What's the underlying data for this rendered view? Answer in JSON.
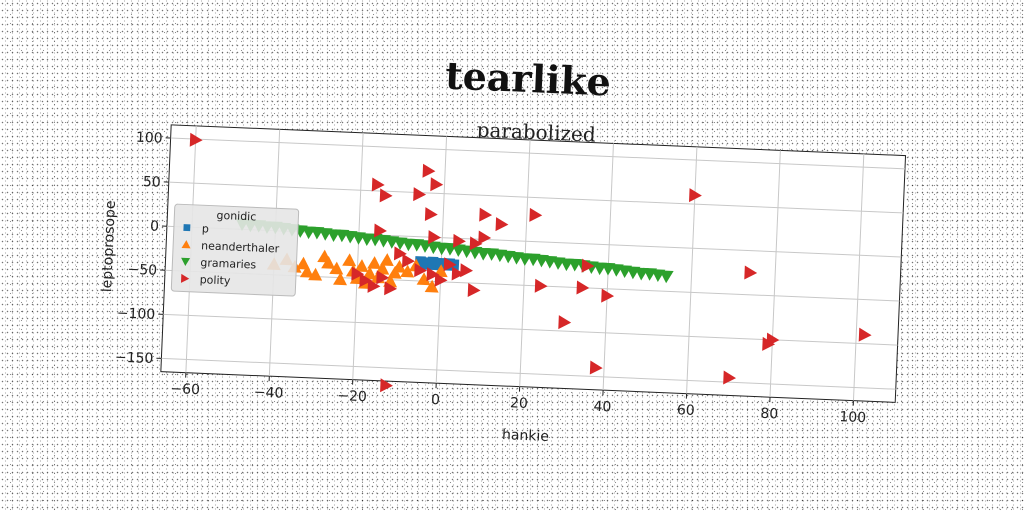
{
  "chart_data": {
    "type": "scatter",
    "title": "tearlike",
    "subtitle": "parabolized",
    "xlabel": "hankie",
    "ylabel": "leptoprosope",
    "xlim": [
      -66,
      110
    ],
    "ylim": [
      -165,
      115
    ],
    "xticks": [
      -60,
      -40,
      -20,
      0,
      20,
      40,
      60,
      80,
      100
    ],
    "yticks": [
      100,
      50,
      0,
      -50,
      -100,
      -150
    ],
    "grid": true,
    "legend": {
      "title": "gonidic",
      "position": "center-left"
    },
    "series": [
      {
        "name": "p",
        "marker": "square",
        "color": "#1f77b4",
        "points": [
          [
            -5,
            -28
          ],
          [
            -4,
            -29
          ],
          [
            -3,
            -29
          ],
          [
            -2,
            -28
          ],
          [
            -1,
            -30
          ],
          [
            0,
            -29
          ],
          [
            1,
            -30
          ],
          [
            2,
            -29
          ],
          [
            3,
            -30
          ],
          [
            -4,
            -31
          ],
          [
            -2,
            -31
          ],
          [
            0,
            -31
          ],
          [
            2,
            -31
          ]
        ]
      },
      {
        "name": "neanderthaler",
        "marker": "triangle-up",
        "color": "#ff7f0e",
        "points": [
          [
            -40,
            -38
          ],
          [
            -37,
            -32
          ],
          [
            -35,
            -40
          ],
          [
            -33,
            -36
          ],
          [
            -32,
            -45
          ],
          [
            -30,
            -48
          ],
          [
            -28,
            -27
          ],
          [
            -27,
            -34
          ],
          [
            -25,
            -40
          ],
          [
            -24,
            -52
          ],
          [
            -22,
            -30
          ],
          [
            -21,
            -42
          ],
          [
            -20,
            -50
          ],
          [
            -19,
            -36
          ],
          [
            -18,
            -55
          ],
          [
            -17,
            -44
          ],
          [
            -16,
            -32
          ],
          [
            -15,
            -48
          ],
          [
            -14,
            -38
          ],
          [
            -13,
            -28
          ],
          [
            -12,
            -52
          ],
          [
            -11,
            -42
          ],
          [
            -10,
            -35
          ],
          [
            -8,
            -40
          ],
          [
            -6,
            -33
          ],
          [
            -4,
            -48
          ],
          [
            -2,
            -56
          ],
          [
            0,
            -38
          ]
        ]
      },
      {
        "name": "gramaries",
        "marker": "triangle-down",
        "color": "#2ca02c",
        "points": [
          [
            -48,
            6
          ],
          [
            -46,
            5
          ],
          [
            -44,
            5
          ],
          [
            -42,
            4
          ],
          [
            -40,
            4
          ],
          [
            -38,
            3
          ],
          [
            -36,
            2
          ],
          [
            -34,
            1
          ],
          [
            -32,
            0
          ],
          [
            -30,
            0
          ],
          [
            -28,
            -1
          ],
          [
            -26,
            -2
          ],
          [
            -24,
            -2
          ],
          [
            -22,
            -3
          ],
          [
            -20,
            -4
          ],
          [
            -18,
            -5
          ],
          [
            -16,
            -5
          ],
          [
            -14,
            -6
          ],
          [
            -12,
            -7
          ],
          [
            -10,
            -8
          ],
          [
            -8,
            -9
          ],
          [
            -6,
            -9
          ],
          [
            -4,
            -10
          ],
          [
            -2,
            -11
          ],
          [
            0,
            -12
          ],
          [
            2,
            -12
          ],
          [
            4,
            -13
          ],
          [
            6,
            -14
          ],
          [
            8,
            -15
          ],
          [
            10,
            -16
          ],
          [
            12,
            -16
          ],
          [
            14,
            -17
          ],
          [
            16,
            -18
          ],
          [
            18,
            -19
          ],
          [
            20,
            -20
          ],
          [
            22,
            -20
          ],
          [
            24,
            -21
          ],
          [
            26,
            -22
          ],
          [
            28,
            -23
          ],
          [
            30,
            -24
          ],
          [
            32,
            -24
          ],
          [
            34,
            -25
          ],
          [
            36,
            -26
          ],
          [
            38,
            -27
          ],
          [
            40,
            -27
          ],
          [
            42,
            -28
          ],
          [
            44,
            -29
          ],
          [
            46,
            -30
          ],
          [
            48,
            -31
          ],
          [
            50,
            -31
          ],
          [
            52,
            -32
          ],
          [
            54,
            -33
          ]
        ]
      },
      {
        "name": "polity",
        "marker": "triangle-right",
        "color": "#d62728",
        "points": [
          [
            -60,
            99
          ],
          [
            -16,
            57
          ],
          [
            -14,
            45
          ],
          [
            -4,
            75
          ],
          [
            -2,
            60
          ],
          [
            -6,
            48
          ],
          [
            -3,
            26
          ],
          [
            -15,
            5
          ],
          [
            -2,
            0
          ],
          [
            4,
            -3
          ],
          [
            10,
            28
          ],
          [
            14,
            18
          ],
          [
            22,
            30
          ],
          [
            8,
            -5
          ],
          [
            10,
            2
          ],
          [
            -10,
            -20
          ],
          [
            -8,
            -28
          ],
          [
            -5,
            -38
          ],
          [
            -2,
            -42
          ],
          [
            0,
            -48
          ],
          [
            2,
            -30
          ],
          [
            4,
            -40
          ],
          [
            6,
            -36
          ],
          [
            8,
            -58
          ],
          [
            -20,
            -45
          ],
          [
            -18,
            -52
          ],
          [
            -16,
            -58
          ],
          [
            -14,
            -48
          ],
          [
            -12,
            -60
          ],
          [
            24,
            -50
          ],
          [
            34,
            -50
          ],
          [
            40,
            -58
          ],
          [
            30,
            -90
          ],
          [
            38,
            -140
          ],
          [
            35,
            -25
          ],
          [
            60,
            60
          ],
          [
            74,
            -25
          ],
          [
            80,
            -100
          ],
          [
            79,
            -105
          ],
          [
            102,
            -90
          ],
          [
            70,
            -145
          ],
          [
            -12,
            -170
          ]
        ]
      }
    ]
  }
}
